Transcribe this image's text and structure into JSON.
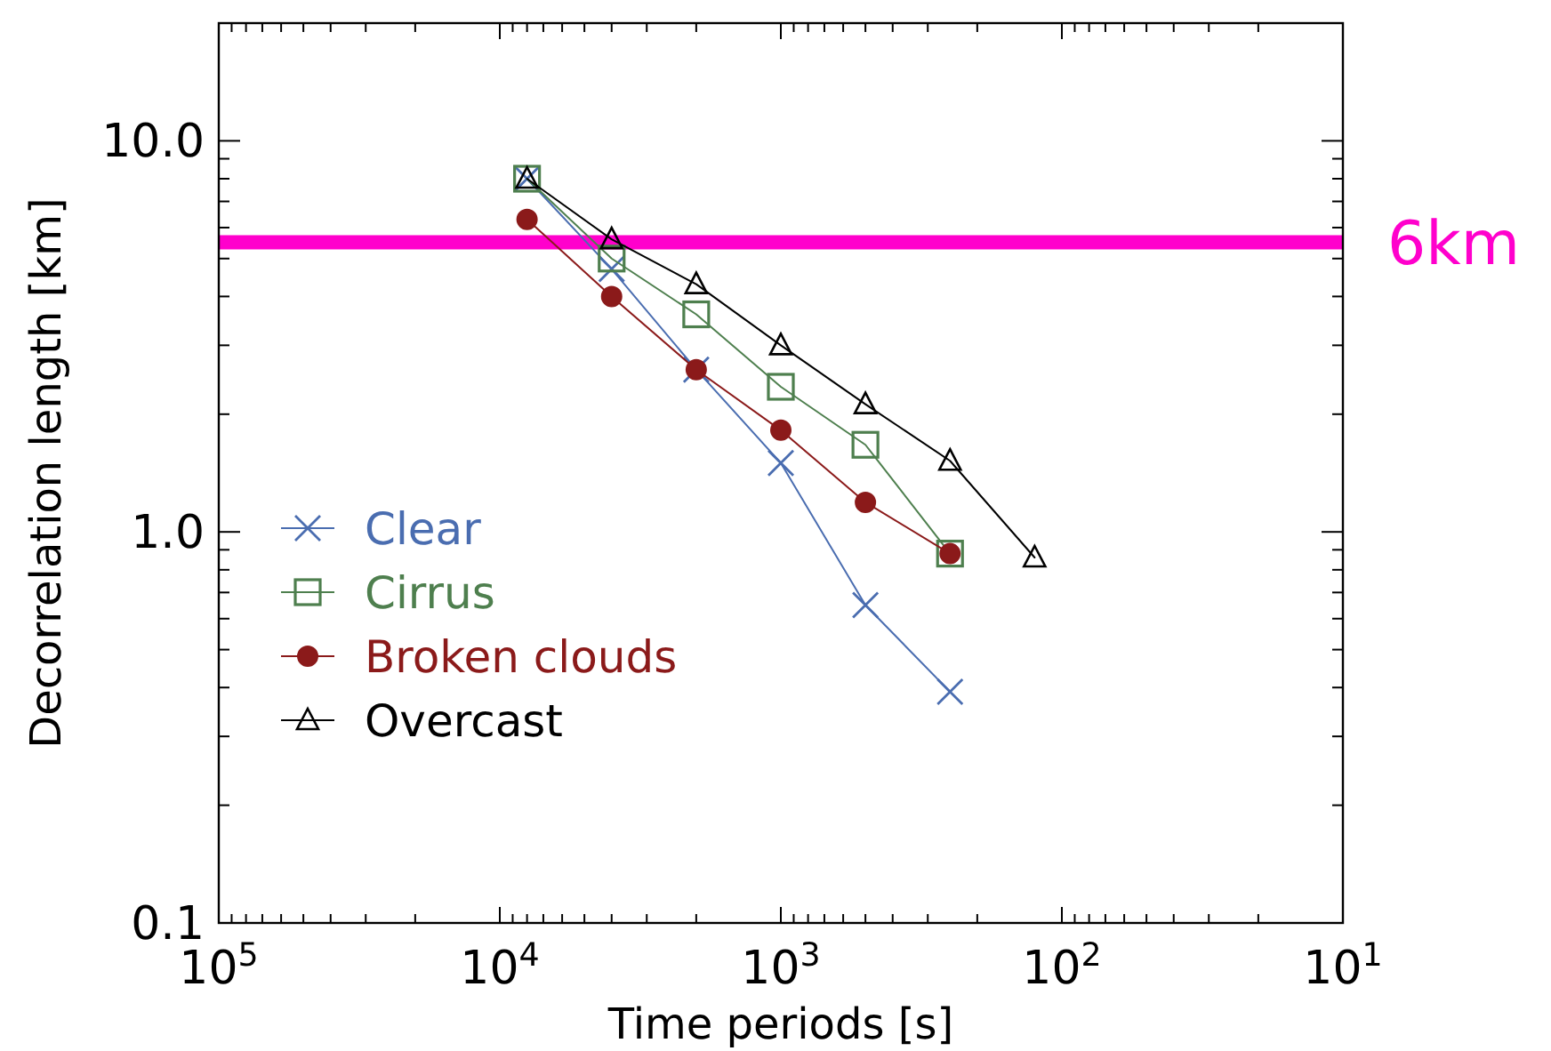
{
  "chart_data": {
    "type": "line",
    "xlabel": "Time periods [s]",
    "ylabel": "Decorrelation length [km]",
    "log": "xy",
    "xlim": [
      100000,
      10
    ],
    "ylim": [
      0.1,
      20
    ],
    "xticks": [
      {
        "value": 100000,
        "label": "10$^{5}$"
      },
      {
        "value": 10000,
        "label": "10$^{4}$"
      },
      {
        "value": 1000,
        "label": "10$^{3}$"
      },
      {
        "value": 100,
        "label": "10$^{2}$"
      },
      {
        "value": 10,
        "label": "10$^{1}$"
      },
      {
        "value": 90000,
        "label": null
      },
      {
        "value": 80000,
        "label": null
      },
      {
        "value": 70000,
        "label": null
      },
      {
        "value": 60000,
        "label": null
      },
      {
        "value": 50000,
        "label": null
      },
      {
        "value": 40000,
        "label": null
      },
      {
        "value": 30000,
        "label": null
      },
      {
        "value": 20000,
        "label": null
      },
      {
        "value": 9000,
        "label": null
      },
      {
        "value": 8000,
        "label": null
      },
      {
        "value": 7000,
        "label": null
      },
      {
        "value": 6000,
        "label": null
      },
      {
        "value": 5000,
        "label": null
      },
      {
        "value": 4000,
        "label": null
      },
      {
        "value": 3000,
        "label": null
      },
      {
        "value": 2000,
        "label": null
      },
      {
        "value": 900,
        "label": null
      },
      {
        "value": 800,
        "label": null
      },
      {
        "value": 700,
        "label": null
      },
      {
        "value": 600,
        "label": null
      },
      {
        "value": 500,
        "label": null
      },
      {
        "value": 400,
        "label": null
      },
      {
        "value": 300,
        "label": null
      },
      {
        "value": 200,
        "label": null
      },
      {
        "value": 90,
        "label": null
      },
      {
        "value": 80,
        "label": null
      },
      {
        "value": 70,
        "label": null
      },
      {
        "value": 60,
        "label": null
      },
      {
        "value": 50,
        "label": null
      },
      {
        "value": 40,
        "label": null
      },
      {
        "value": 30,
        "label": null
      },
      {
        "value": 20,
        "label": null
      }
    ],
    "yticks": [
      0.1,
      {
        "value": 1,
        "label": "1.0"
      },
      {
        "value": 10,
        "label": "10.0"
      },
      {
        "value": 0.2,
        "label": null
      },
      {
        "value": 0.3,
        "label": null
      },
      {
        "value": 0.4,
        "label": null
      },
      {
        "value": 0.5,
        "label": null
      },
      {
        "value": 0.6,
        "label": null
      },
      {
        "value": 0.7,
        "label": null
      },
      {
        "value": 0.8,
        "label": null
      },
      {
        "value": 0.9,
        "label": null
      },
      {
        "value": 2,
        "label": null
      },
      {
        "value": 3,
        "label": null
      },
      {
        "value": 4,
        "label": null
      },
      {
        "value": 5,
        "label": null
      },
      {
        "value": 6,
        "label": null
      },
      {
        "value": 7,
        "label": null
      },
      {
        "value": 8,
        "label": null
      },
      {
        "value": 9,
        "label": null
      },
      {
        "value": 20,
        "label": null
      }
    ],
    "legend": "left",
    "grid": false,
    "ref_lines": [
      {
        "axis": "y",
        "value": 5.5,
        "label": "6km",
        "color": "#ff00cc"
      }
    ],
    "series": [
      {
        "name": "Clear",
        "color": "#4a6db0",
        "marker": "cross",
        "x": [
          8000,
          4000,
          2000,
          1000,
          500,
          250
        ],
        "values": [
          8.0,
          4.7,
          2.6,
          1.5,
          0.65,
          0.39
        ]
      },
      {
        "name": "Cirrus",
        "color": "#4e7f4e",
        "marker": "square",
        "x": [
          8000,
          4000,
          2000,
          1000,
          500,
          250
        ],
        "values": [
          8.0,
          5.0,
          3.6,
          2.35,
          1.67,
          0.88
        ]
      },
      {
        "name": "Broken clouds",
        "color": "#8b1a1a",
        "marker": "circle",
        "x": [
          8000,
          4000,
          2000,
          1000,
          500,
          250
        ],
        "values": [
          6.3,
          4.0,
          2.6,
          1.82,
          1.19,
          0.88
        ]
      },
      {
        "name": "Overcast",
        "color": "#000000",
        "marker": "triangle",
        "x": [
          8000,
          4000,
          2000,
          1000,
          500,
          250,
          125
        ],
        "values": [
          8.0,
          5.6,
          4.3,
          3.0,
          2.12,
          1.52,
          0.86
        ]
      }
    ]
  }
}
